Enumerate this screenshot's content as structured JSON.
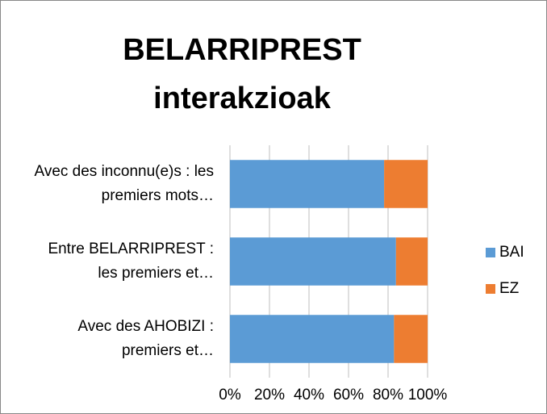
{
  "chart_data": {
    "type": "stacked_bar_horizontal",
    "title": "BELARRIPREST interakzioak",
    "categories": [
      "Avec des inconnu(e)s : les premiers mots…",
      "Entre BELARRIPREST : les premiers et…",
      "Avec des AHOBIZI : premiers et…"
    ],
    "series": [
      {
        "name": "BAI",
        "color": "#5b9bd5",
        "values": [
          78,
          84,
          83
        ]
      },
      {
        "name": "EZ",
        "color": "#ed7d31",
        "values": [
          22,
          16,
          17
        ]
      }
    ],
    "xlim": [
      0,
      100
    ],
    "xticks": [
      {
        "value": 0,
        "label": "0%"
      },
      {
        "value": 20,
        "label": "20%"
      },
      {
        "value": 40,
        "label": "40%"
      },
      {
        "value": 60,
        "label": "60%"
      },
      {
        "value": 80,
        "label": "80%"
      },
      {
        "value": 100,
        "label": "100%"
      }
    ],
    "grid": true,
    "legend": "right"
  }
}
